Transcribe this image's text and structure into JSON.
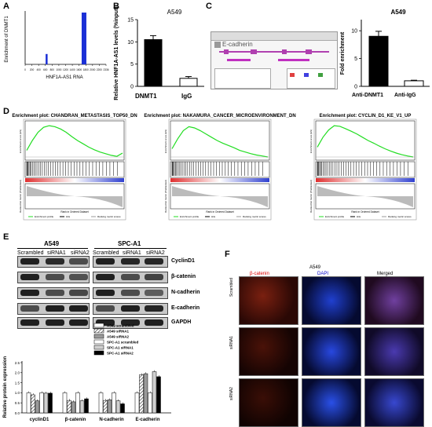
{
  "panels": {
    "A": {
      "label": "A",
      "ylabel": "Enrichment of DNMT1",
      "xlabel": "HNF1A-AS1 RNA",
      "xticks": [
        "0",
        "200",
        "400",
        "600",
        "800",
        "1000",
        "1200",
        "1400",
        "1600",
        "1800",
        "2000",
        "2200",
        "2336"
      ]
    },
    "B": {
      "label": "B",
      "title": "A549",
      "ylabel": "Relative HNF1A-AS1 levels (%input)",
      "categories": [
        "DNMT1",
        "IgG"
      ]
    },
    "C": {
      "label": "C",
      "gene": "E-cadherin",
      "chart_title": "A549",
      "ylabel": "Fold enrichment",
      "categories": [
        "Anti-DNMT1",
        "Anti-IgG"
      ]
    },
    "D": {
      "label": "D",
      "plots": [
        {
          "title": "Enrichment plot: CHANDRAN_METASTASIS_TOP50_DN"
        },
        {
          "title": "Enrichment plot: NAKAMURA_CANCER_MICROENVIRONMENT_DN"
        },
        {
          "title": "Enrichment plot: CYCLIN_D1_KE_V1_UP"
        }
      ],
      "ylabel_top": "Enrichment score (ES)",
      "ylabel_bottom": "Ranked list metric (PreRanked)",
      "xlabel": "Rank in Ordered Dataset",
      "legend": [
        "Enrichment profile",
        "Hits",
        "Ranking metric scores"
      ]
    },
    "E": {
      "label": "E",
      "group1": "A549",
      "group2": "SPC-A1",
      "lanes": [
        "Scrambled",
        "siRNA1",
        "siRNA2",
        "Scrambled",
        "siRNA1",
        "siRNA2"
      ],
      "proteins": [
        "CyclinD1",
        "β-catenin",
        "N-cadherin",
        "E-cadherin",
        "GAPDH"
      ],
      "legend": [
        "A549 scrambled",
        "A549 siRNA1",
        "A549 siRNA2",
        "SPC-A1 scrambled",
        "SPC-A1 siRNA1",
        "SPC-A1 siRNA2"
      ],
      "ylabel": "Relative protein expression"
    },
    "F": {
      "label": "F",
      "title": "A549",
      "columns": [
        "β-catenin",
        "DAPI",
        "Merged"
      ],
      "rows": [
        "Scrambled",
        "siRNA1",
        "siRNA2"
      ]
    }
  },
  "chart_data": [
    {
      "type": "bar",
      "panel": "A",
      "xlabel": "HNF1A-AS1 RNA",
      "ylabel": "Enrichment of DNMT1",
      "x": [
        620,
        1700
      ],
      "values": [
        0.2,
        1.0
      ],
      "xlim": [
        0,
        2336
      ]
    },
    {
      "type": "bar",
      "panel": "B",
      "title": "A549",
      "categories": [
        "DNMT1",
        "IgG"
      ],
      "values": [
        10.5,
        1.8
      ],
      "errors": [
        0.9,
        0.4
      ],
      "ylim": [
        0,
        15
      ],
      "yticks": [
        0,
        5,
        10,
        15
      ],
      "ylabel": "Relative HNF1A-AS1 levels (%input)"
    },
    {
      "type": "bar",
      "panel": "C",
      "title": "A549",
      "categories": [
        "Anti-DNMT1",
        "Anti-IgG"
      ],
      "values": [
        9,
        1
      ],
      "errors": [
        0.9,
        0.1
      ],
      "ylim": [
        0,
        12
      ],
      "yticks": [
        0,
        5,
        10
      ],
      "ylabel": "Fold enrichment"
    },
    {
      "type": "bar",
      "panel": "E",
      "categories": [
        "cyclinD1",
        "β-catenin",
        "N-cadherin",
        "E-cadherin"
      ],
      "ylim": [
        0,
        2.5
      ],
      "yticks": [
        0,
        0.5,
        1.0,
        1.5,
        2.0,
        2.5
      ],
      "ylabel": "Relative protein expression",
      "series": [
        {
          "name": "A549 scrambled",
          "values": [
            1.0,
            1.0,
            1.0,
            1.0
          ]
        },
        {
          "name": "A549 siRNA1",
          "values": [
            0.9,
            0.62,
            0.62,
            1.9
          ]
        },
        {
          "name": "A549 siRNA2",
          "values": [
            0.6,
            0.55,
            0.65,
            1.95
          ]
        },
        {
          "name": "SPC-A1 scrambled",
          "values": [
            1.0,
            1.0,
            1.0,
            1.0
          ]
        },
        {
          "name": "SPC-A1 siRNA1",
          "values": [
            0.98,
            0.6,
            0.6,
            2.05
          ]
        },
        {
          "name": "SPC-A1 siRNA2",
          "values": [
            0.98,
            0.7,
            0.45,
            1.8
          ]
        }
      ]
    }
  ]
}
